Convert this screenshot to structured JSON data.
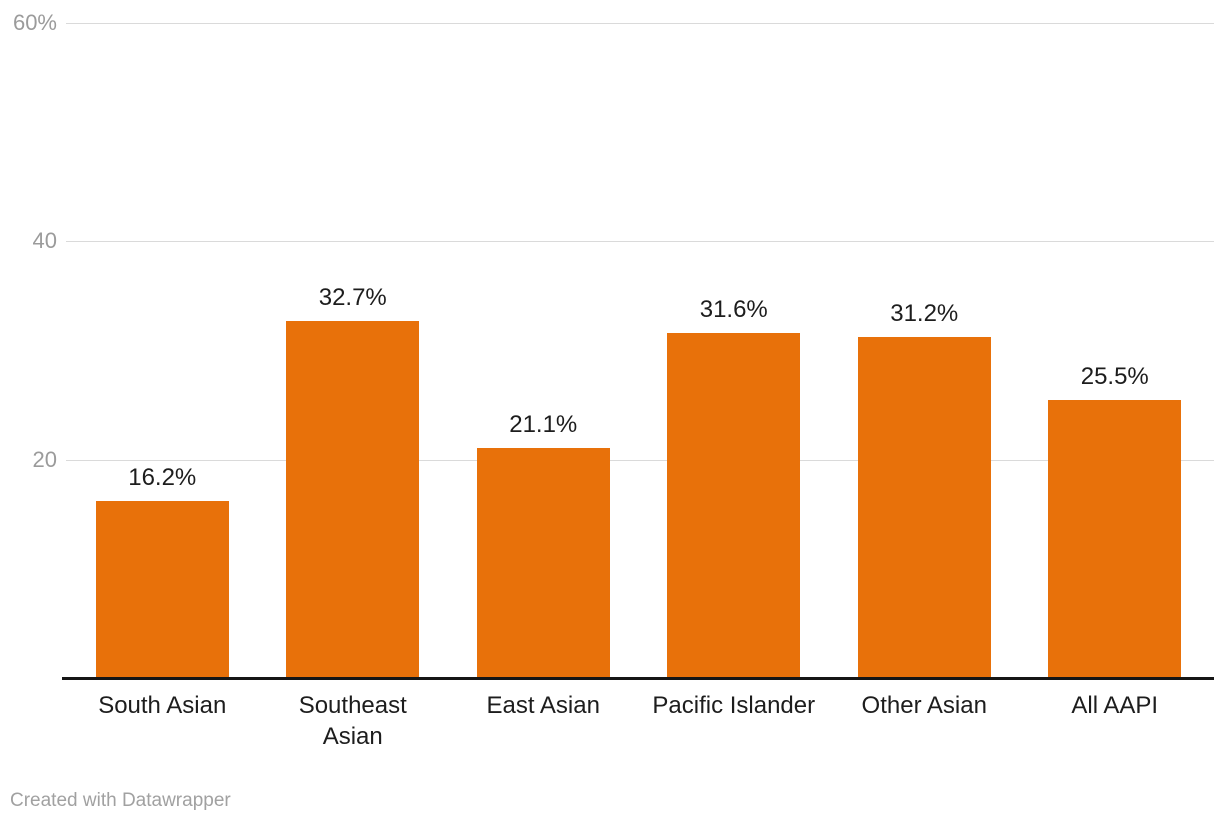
{
  "chart_data": {
    "type": "bar",
    "title": "",
    "xlabel": "",
    "ylabel": "",
    "categories": [
      "South Asian",
      "Southeast\nAsian",
      "East Asian",
      "Pacific Islander",
      "Other Asian",
      "All AAPI"
    ],
    "values": [
      16.2,
      32.7,
      21.1,
      31.6,
      31.2,
      25.5
    ],
    "value_labels": [
      "16.2%",
      "32.7%",
      "21.1%",
      "31.6%",
      "31.2%",
      "25.5%"
    ],
    "y_ticks": [
      {
        "value": 20,
        "label": "20"
      },
      {
        "value": 40,
        "label": "40"
      },
      {
        "value": 60,
        "label": "60%"
      }
    ],
    "ylim": [
      0,
      60
    ],
    "grid": true,
    "legend": false,
    "bar_color": "#E8710A",
    "grid_color": "#dadada",
    "tick_label_color": "#9b9b9b",
    "axis_line_color": "#161616",
    "value_label_color": "#1d1d1d",
    "category_label_color": "#1d1d1d"
  },
  "footer": {
    "credit": "Created with Datawrapper"
  }
}
